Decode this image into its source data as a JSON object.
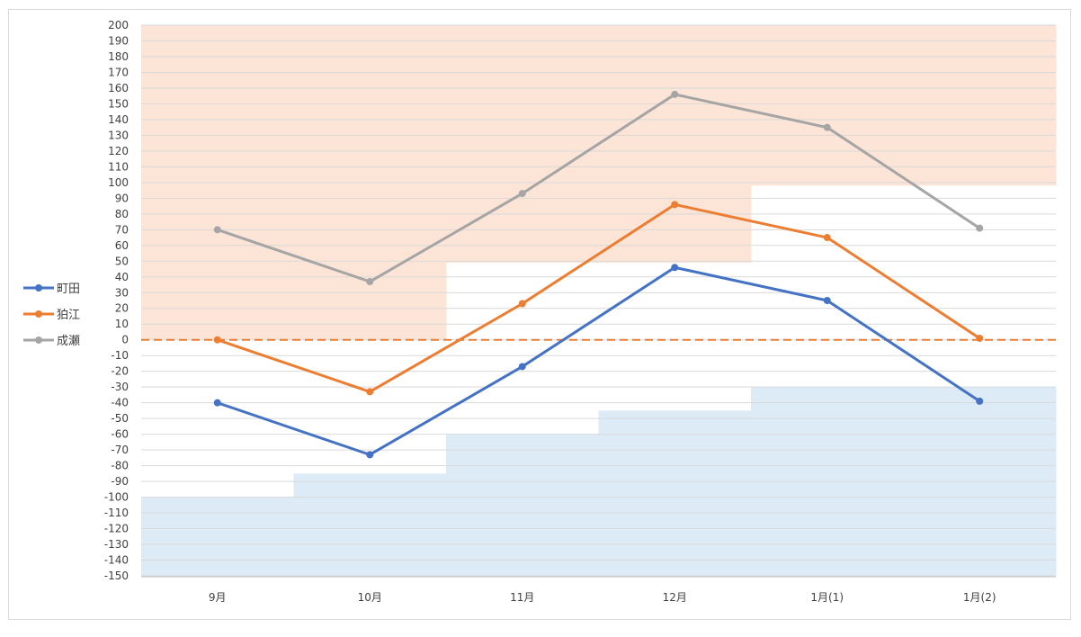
{
  "chart_data": {
    "type": "line",
    "title": "",
    "xlabel": "",
    "ylabel": "",
    "categories": [
      "9月",
      "10月",
      "11月",
      "12月",
      "1月(1)",
      "1月(2)"
    ],
    "ylim": [
      -150,
      200
    ],
    "ytick_step": 10,
    "grid": true,
    "legend_position": "left",
    "series": [
      {
        "name": "町田",
        "color": "#4472c4",
        "values": [
          -40,
          -73,
          -17,
          46,
          25,
          -39
        ]
      },
      {
        "name": "狛江",
        "color": "#ed7d31",
        "values": [
          0,
          -33,
          23,
          86,
          65,
          1
        ]
      },
      {
        "name": "成瀬",
        "color": "#a5a5a5",
        "values": [
          70,
          37,
          93,
          156,
          135,
          71
        ]
      }
    ],
    "reference_line": {
      "value": 0,
      "style": "dashed",
      "color": "#ed7d31"
    },
    "upper_band": {
      "color": "#fce4d6",
      "to": 200,
      "from_by_category": [
        0,
        0,
        49,
        49,
        98,
        98
      ]
    },
    "lower_band": {
      "color": "#ddebf7",
      "from": -150,
      "to_by_category": [
        -100,
        -85,
        -60,
        -45,
        -30,
        -30
      ]
    }
  }
}
